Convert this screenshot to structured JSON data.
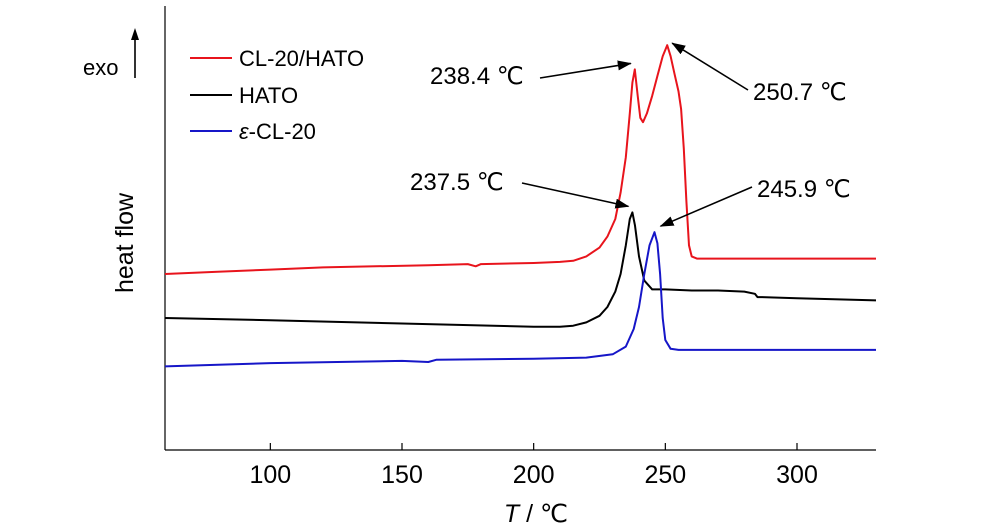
{
  "chart_data": {
    "type": "line",
    "title": "",
    "xlabel": {
      "symbol": "T",
      "unit": " / ℃"
    },
    "ylabel": "heat flow",
    "exo_label": "exo",
    "xlim": [
      60,
      330
    ],
    "xticks": [
      100,
      150,
      200,
      250,
      300
    ],
    "yticks": "none",
    "grid": false,
    "legend_position": "top-left",
    "series": [
      {
        "name": "CL-20/HATO",
        "legend_prefix": "",
        "legend_text": "CL-20/HATO",
        "color": "#e8141c",
        "x": [
          60,
          80,
          100,
          120,
          140,
          160,
          175,
          178,
          180,
          200,
          210,
          215,
          220,
          225,
          228,
          231,
          233,
          235,
          236.5,
          237.5,
          238.4,
          239.5,
          240.5,
          241.5,
          243,
          245,
          247,
          249,
          250.7,
          252,
          253.5,
          255,
          256,
          257,
          258,
          259,
          260,
          262,
          270,
          290,
          310,
          330
        ],
        "y": [
          0.05,
          0.06,
          0.07,
          0.08,
          0.085,
          0.09,
          0.095,
          0.085,
          0.095,
          0.1,
          0.105,
          0.11,
          0.13,
          0.17,
          0.22,
          0.3,
          0.42,
          0.58,
          0.78,
          0.92,
          0.98,
          0.86,
          0.76,
          0.74,
          0.78,
          0.86,
          0.95,
          1.04,
          1.09,
          1.04,
          0.96,
          0.88,
          0.8,
          0.62,
          0.38,
          0.18,
          0.13,
          0.12,
          0.12,
          0.12,
          0.12,
          0.12
        ]
      },
      {
        "name": "HATO",
        "legend_prefix": "",
        "legend_text": "HATO",
        "color": "#000000",
        "x": [
          60,
          100,
          150,
          200,
          210,
          215,
          220,
          225,
          228,
          231,
          233,
          235,
          236.5,
          237.5,
          238.5,
          240,
          242,
          245,
          250,
          260,
          270,
          280,
          284,
          285,
          286,
          300,
          330
        ],
        "y": [
          -0.15,
          -0.16,
          -0.175,
          -0.19,
          -0.19,
          -0.185,
          -0.17,
          -0.14,
          -0.1,
          -0.03,
          0.05,
          0.18,
          0.3,
          0.33,
          0.27,
          0.13,
          0.02,
          -0.02,
          -0.02,
          -0.025,
          -0.025,
          -0.03,
          -0.04,
          -0.055,
          -0.055,
          -0.06,
          -0.07
        ]
      },
      {
        "name": "ε-CL-20",
        "legend_prefix": "ε",
        "legend_text": "-CL-20",
        "color": "#1616c8",
        "x": [
          60,
          100,
          150,
          160,
          163,
          200,
          220,
          230,
          235,
          238,
          240,
          242,
          244,
          245.9,
          247,
          248,
          249,
          250,
          252,
          255,
          260,
          290,
          330
        ],
        "y": [
          -0.37,
          -0.355,
          -0.345,
          -0.35,
          -0.34,
          -0.335,
          -0.33,
          -0.315,
          -0.28,
          -0.2,
          -0.1,
          0.05,
          0.18,
          0.24,
          0.19,
          0.05,
          -0.15,
          -0.25,
          -0.29,
          -0.295,
          -0.295,
          -0.295,
          -0.295
        ]
      }
    ],
    "annotations": [
      {
        "text": "238.4 ℃",
        "series": "CL-20/HATO",
        "x": 238.4
      },
      {
        "text": "250.7 ℃",
        "series": "CL-20/HATO",
        "x": 250.7
      },
      {
        "text": "237.5 ℃",
        "series": "HATO",
        "x": 237.5
      },
      {
        "text": "245.9 ℃",
        "series": "ε-CL-20",
        "x": 245.9
      }
    ]
  }
}
